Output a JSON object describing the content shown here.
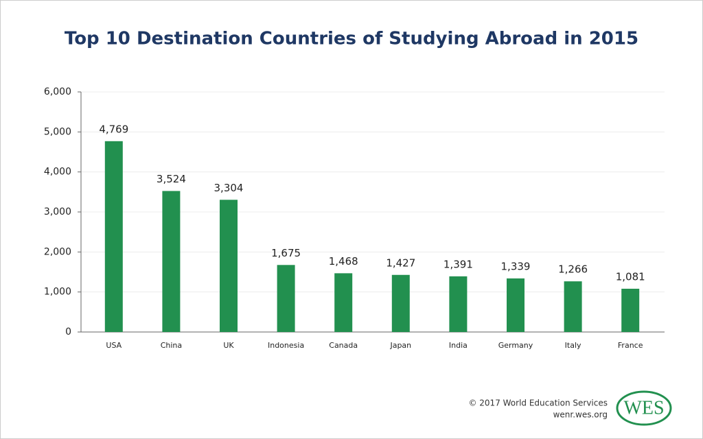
{
  "chart_data": {
    "type": "bar",
    "title": "Top 10 Destination Countries of Studying Abroad in 2015",
    "categories": [
      "USA",
      "China",
      "UK",
      "Indonesia",
      "Canada",
      "Japan",
      "India",
      "Germany",
      "Italy",
      "France"
    ],
    "values": [
      4769,
      3524,
      3304,
      1675,
      1468,
      1427,
      1391,
      1339,
      1266,
      1081
    ],
    "value_labels": [
      "4,769",
      "3,524",
      "3,304",
      "1,675",
      "1,468",
      "1,427",
      "1,391",
      "1,339",
      "1,266",
      "1,081"
    ],
    "color": "#22904f",
    "ylim": [
      0,
      6000
    ],
    "yticks": [
      0,
      {
        "value": 1000,
        "label": "1,000"
      },
      {
        "value": 2000,
        "label": "2,000"
      },
      {
        "value": 3000,
        "label": "3,000"
      },
      {
        "value": 4000,
        "label": "4,000"
      },
      {
        "value": 5000,
        "label": "5,000"
      },
      {
        "value": 6000,
        "label": "6,000"
      }
    ],
    "grid": true
  },
  "footer": {
    "copyright": "© 2017 World Education Services",
    "url": "wenr.wes.org",
    "logo": "WES"
  }
}
